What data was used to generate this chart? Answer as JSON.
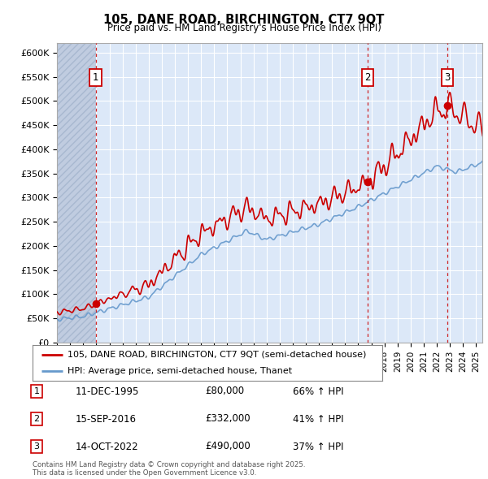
{
  "title1": "105, DANE ROAD, BIRCHINGTON, CT7 9QT",
  "title2": "Price paid vs. HM Land Registry's House Price Index (HPI)",
  "ylabel_ticks": [
    "£0",
    "£50K",
    "£100K",
    "£150K",
    "£200K",
    "£250K",
    "£300K",
    "£350K",
    "£400K",
    "£450K",
    "£500K",
    "£550K",
    "£600K"
  ],
  "ytick_vals": [
    0,
    50000,
    100000,
    150000,
    200000,
    250000,
    300000,
    350000,
    400000,
    450000,
    500000,
    550000,
    600000
  ],
  "ylim": [
    0,
    620000
  ],
  "xlim_start": 1993.0,
  "xlim_end": 2025.5,
  "sale_dates": [
    1995.95,
    2016.71,
    2022.79
  ],
  "sale_prices": [
    80000,
    332000,
    490000
  ],
  "sale_labels": [
    "1",
    "2",
    "3"
  ],
  "legend_line1": "105, DANE ROAD, BIRCHINGTON, CT7 9QT (semi-detached house)",
  "legend_line2": "HPI: Average price, semi-detached house, Thanet",
  "table_data": [
    [
      "1",
      "11-DEC-1995",
      "£80,000",
      "66% ↑ HPI"
    ],
    [
      "2",
      "15-SEP-2016",
      "£332,000",
      "41% ↑ HPI"
    ],
    [
      "3",
      "14-OCT-2022",
      "£490,000",
      "37% ↑ HPI"
    ]
  ],
  "footer": "Contains HM Land Registry data © Crown copyright and database right 2025.\nThis data is licensed under the Open Government Licence v3.0.",
  "bg_color": "#dce8f8",
  "hatch_color": "#c0cce0",
  "grid_color": "#ffffff",
  "red_line_color": "#cc0000",
  "blue_line_color": "#6699cc",
  "sale_marker_color": "#cc0000",
  "vline_color": "#cc0000"
}
